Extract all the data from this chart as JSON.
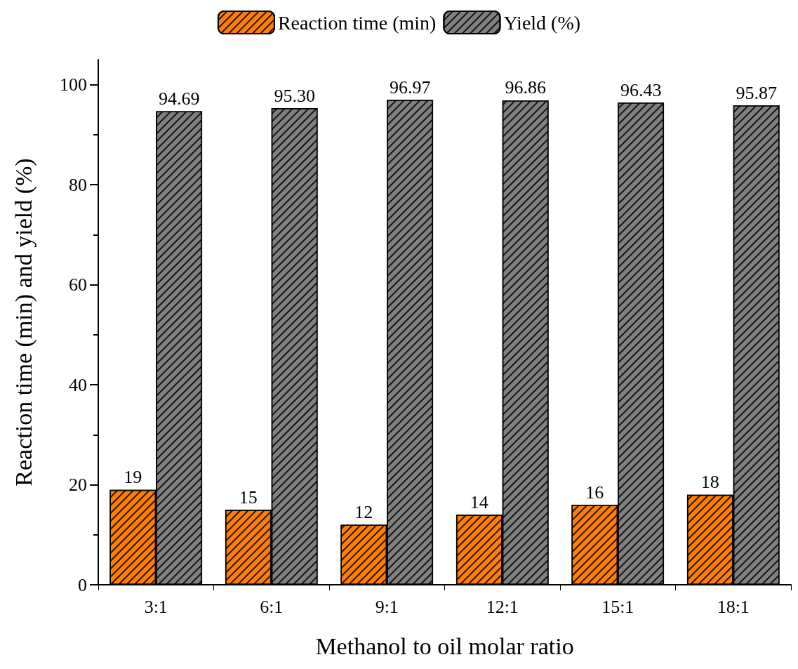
{
  "chart_data": {
    "type": "bar",
    "xlabel": "Methanol to oil molar ratio",
    "ylabel": "Reaction time (min) and yield (%)",
    "categories": [
      "3:1",
      "6:1",
      "9:1",
      "12:1",
      "15:1",
      "18:1"
    ],
    "series": [
      {
        "name": "Reaction time (min)",
        "color": "#ff7f00",
        "values": [
          19,
          15,
          12,
          14,
          16,
          18
        ],
        "value_labels": [
          "19",
          "15",
          "12",
          "14",
          "16",
          "18"
        ]
      },
      {
        "name": "Yield (%)",
        "color": "#808080",
        "values": [
          94.69,
          95.3,
          96.97,
          96.86,
          96.43,
          95.87
        ],
        "value_labels": [
          "94.69",
          "95.30",
          "96.97",
          "96.86",
          "96.43",
          "95.87"
        ]
      }
    ],
    "ylim": [
      0,
      105
    ],
    "yticks": [
      0,
      20,
      40,
      60,
      80,
      100
    ],
    "grid": false,
    "legend": "top"
  }
}
